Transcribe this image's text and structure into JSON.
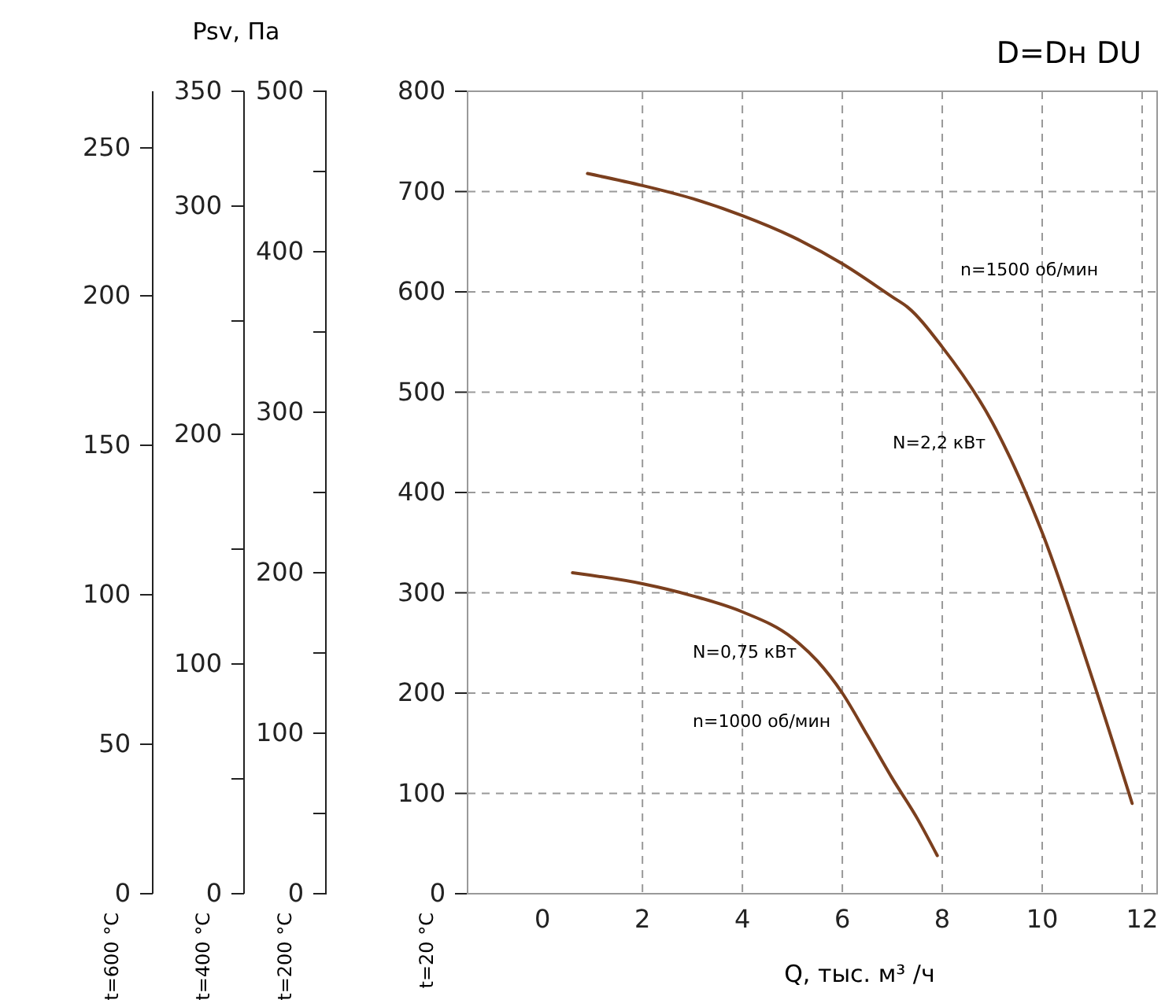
{
  "chart_data": {
    "type": "line",
    "title": "D=Dн DU",
    "xlabel": "Q, тыс. м³ /ч",
    "ylabel": "t=20 °C",
    "y2label": "t=200 °C",
    "xlim": [
      -1.5,
      12.3
    ],
    "xticks": [
      0,
      2,
      4,
      6,
      8,
      10,
      12
    ],
    "ylim": [
      0,
      800
    ],
    "yticks": [
      0,
      100,
      200,
      300,
      400,
      500,
      600,
      700,
      800
    ],
    "y2lim": [
      0,
      500
    ],
    "y2ticks": [
      0,
      100,
      200,
      300,
      400,
      500
    ],
    "grid": true,
    "marker": "none",
    "series": [
      {
        "color": "#7b3f1e",
        "x": [
          0.9,
          2,
          3,
          4,
          5,
          6,
          7,
          7.3,
          8,
          9,
          10,
          11,
          11.8
        ],
        "values": [
          718,
          706,
          693,
          676,
          655,
          628,
          595,
          585,
          545,
          470,
          360,
          215,
          90
        ]
      },
      {
        "color": "#7b3f1e",
        "x": [
          0.6,
          2,
          3,
          4,
          5,
          5.5,
          6,
          6.5,
          7,
          7.5,
          7.9
        ],
        "values": [
          320,
          309,
          297,
          281,
          255,
          232,
          200,
          158,
          115,
          75,
          38
        ]
      }
    ],
    "annotations": [
      "n=1500 об/мин",
      "N=2,2 кВт",
      "N=0,75 кВт",
      "n=1000 об/мин",
      "Psv, Па",
      "t=400 °C",
      "0",
      "100",
      "200",
      "300",
      "350",
      "t=600 °C",
      "0",
      "50",
      "100",
      "150",
      "200",
      "250"
    ]
  }
}
